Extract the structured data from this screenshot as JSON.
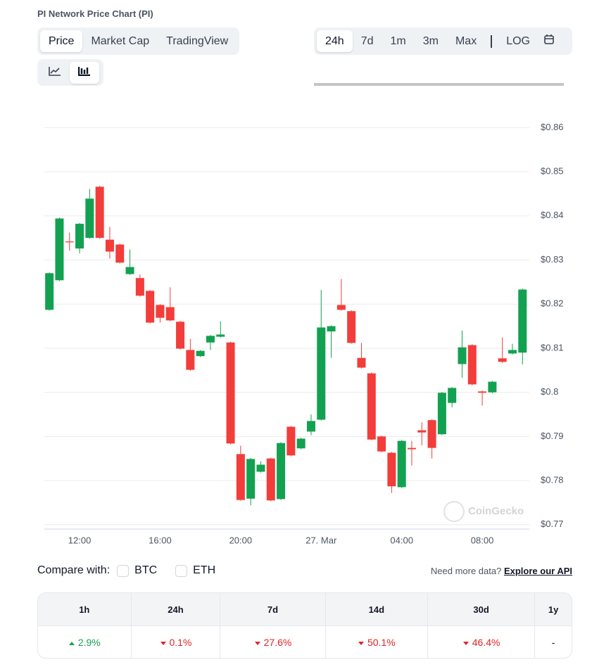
{
  "header": {
    "title": "PI Network Price Chart (PI)"
  },
  "tabs": [
    {
      "label": "Price",
      "active": true
    },
    {
      "label": "Market Cap"
    },
    {
      "label": "TradingView"
    }
  ],
  "ranges": [
    {
      "label": "24h",
      "active": true
    },
    {
      "label": "7d"
    },
    {
      "label": "1m"
    },
    {
      "label": "3m"
    },
    {
      "label": "Max"
    }
  ],
  "log_label": "LOG",
  "chart_data": {
    "type": "candlestick",
    "watermark": "CoinGecko",
    "up_color": "#12a150",
    "down_color": "#f23d3a",
    "x": [
      10.5,
      11,
      11.5,
      12,
      12.5,
      13,
      13.5,
      14,
      14.5,
      15,
      15.5,
      16,
      16.5,
      17,
      17.5,
      18,
      18.5,
      19,
      19.5,
      20,
      20.5,
      21,
      21.5,
      22,
      22.5,
      23,
      23.5,
      24,
      24.5,
      25,
      25.5,
      26,
      26.5,
      27,
      27.5,
      28,
      28.5,
      29,
      29.5,
      30,
      30.5,
      31,
      31.5,
      32,
      32.5,
      33,
      33.5,
      34
    ],
    "open": [
      0.8187,
      0.8254,
      0.8342,
      0.8326,
      0.835,
      0.8466,
      0.8346,
      0.8335,
      0.8268,
      0.8259,
      0.823,
      0.8198,
      0.8193,
      0.816,
      0.8096,
      0.8082,
      0.8113,
      0.8126,
      0.8113,
      0.786,
      0.7759,
      0.782,
      0.785,
      0.7758,
      0.7922,
      0.7873,
      0.7911,
      0.7938,
      0.8138,
      0.8198,
      0.8184,
      0.8078,
      0.8043,
      0.79,
      0.7863,
      0.7785,
      0.7874,
      0.7914,
      0.7937,
      0.7905,
      0.7976,
      0.8064,
      0.8107,
      0.8002,
      0.8,
      0.8077,
      0.8088,
      0.809
    ],
    "high": [
      0.8272,
      0.8396,
      0.8362,
      0.8384,
      0.8461,
      0.8468,
      0.8375,
      0.8337,
      0.8324,
      0.8267,
      0.8232,
      0.82,
      0.8238,
      0.8162,
      0.8121,
      0.8096,
      0.813,
      0.8161,
      0.8115,
      0.7879,
      0.7851,
      0.7844,
      0.7852,
      0.7887,
      0.7924,
      0.7897,
      0.795,
      0.8232,
      0.8152,
      0.8257,
      0.8186,
      0.8112,
      0.8045,
      0.7902,
      0.7865,
      0.7892,
      0.789,
      0.7932,
      0.7939,
      0.8001,
      0.8012,
      0.814,
      0.8109,
      0.8004,
      0.8026,
      0.8124,
      0.811,
      0.8235
    ],
    "low": [
      0.8185,
      0.8252,
      0.8321,
      0.8315,
      0.8348,
      0.8348,
      0.8303,
      0.8292,
      0.8266,
      0.8217,
      0.8156,
      0.8158,
      0.8161,
      0.8097,
      0.8049,
      0.808,
      0.8096,
      0.8124,
      0.7882,
      0.7754,
      0.7744,
      0.7818,
      0.7753,
      0.7756,
      0.7855,
      0.7871,
      0.7903,
      0.7936,
      0.8078,
      0.8185,
      0.811,
      0.8054,
      0.7891,
      0.7864,
      0.7772,
      0.7783,
      0.7834,
      0.788,
      0.785,
      0.7903,
      0.7966,
      0.8033,
      0.8016,
      0.797,
      0.7998,
      0.8067,
      0.8086,
      0.8063
    ],
    "close": [
      0.827,
      0.8394,
      0.834,
      0.8382,
      0.8439,
      0.835,
      0.8319,
      0.8294,
      0.8284,
      0.8219,
      0.8158,
      0.8169,
      0.8163,
      0.8099,
      0.8051,
      0.8094,
      0.8128,
      0.8131,
      0.7884,
      0.7756,
      0.7849,
      0.7836,
      0.7755,
      0.7885,
      0.7857,
      0.7895,
      0.7935,
      0.8147,
      0.815,
      0.8187,
      0.8112,
      0.8056,
      0.7893,
      0.7866,
      0.7787,
      0.789,
      0.7871,
      0.7909,
      0.7874,
      0.7999,
      0.801,
      0.8102,
      0.8018,
      0.7999,
      0.8024,
      0.8069,
      0.8096,
      0.8233
    ],
    "xlim": [
      10.25,
      34.34
    ],
    "xticks": [
      {
        "value": 12,
        "label": "12:00"
      },
      {
        "value": 16,
        "label": "16:00"
      },
      {
        "value": 20,
        "label": "20:00"
      },
      {
        "value": 24,
        "label": "27. Mar"
      },
      {
        "value": 28,
        "label": "04:00"
      },
      {
        "value": 32,
        "label": "08:00"
      }
    ],
    "ylim": [
      0.769,
      0.865
    ],
    "yticks": [
      {
        "value": 0.77,
        "label": "$0.77"
      },
      {
        "value": 0.78,
        "label": "$0.78"
      },
      {
        "value": 0.79,
        "label": "$0.79"
      },
      {
        "value": 0.8,
        "label": "$0.8"
      },
      {
        "value": 0.81,
        "label": "$0.81"
      },
      {
        "value": 0.82,
        "label": "$0.82"
      },
      {
        "value": 0.83,
        "label": "$0.83"
      },
      {
        "value": 0.84,
        "label": "$0.84"
      },
      {
        "value": 0.85,
        "label": "$0.85"
      },
      {
        "value": 0.86,
        "label": "$0.86"
      }
    ],
    "grid": true
  },
  "compare": {
    "label": "Compare with:",
    "options": [
      "BTC",
      "ETH"
    ]
  },
  "more_data": {
    "text": "Need more data?",
    "link": "Explore our API"
  },
  "changes": [
    {
      "period": "1h",
      "value": "2.9%",
      "trend": "up"
    },
    {
      "period": "24h",
      "value": "0.1%",
      "trend": "down"
    },
    {
      "period": "7d",
      "value": "27.6%",
      "trend": "down"
    },
    {
      "period": "14d",
      "value": "50.1%",
      "trend": "down"
    },
    {
      "period": "30d",
      "value": "46.4%",
      "trend": "down"
    },
    {
      "period": "1y",
      "value": "-"
    }
  ]
}
